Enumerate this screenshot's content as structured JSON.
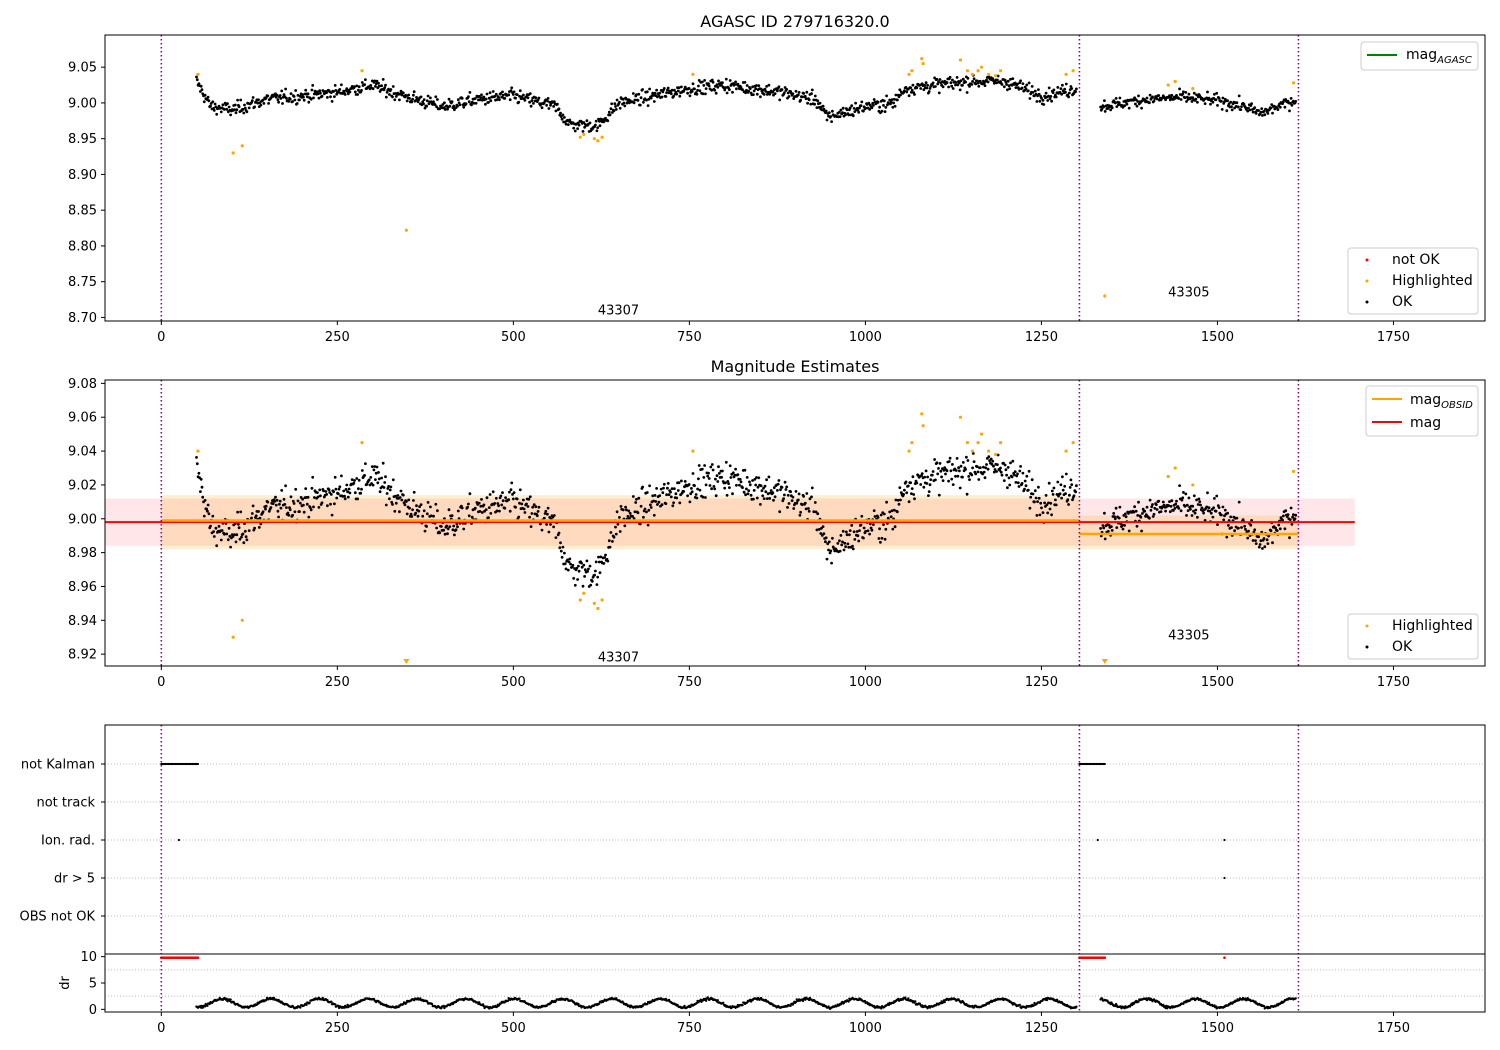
{
  "chart_data": [
    {
      "type": "scatter",
      "title": "AGASC ID 279716320.0",
      "xlim": [
        -80,
        1880
      ],
      "ylim": [
        8.695,
        9.095
      ],
      "xticks": [
        0,
        250,
        500,
        750,
        1000,
        1250,
        1500,
        1750
      ],
      "yticks": [
        8.7,
        8.75,
        8.8,
        8.85,
        8.9,
        8.95,
        9.0,
        9.05
      ],
      "ytick_labels": [
        "8.70",
        "8.75",
        "8.80",
        "8.85",
        "8.90",
        "8.95",
        "9.00",
        "9.05"
      ],
      "obs_boundaries": [
        0,
        1304,
        1615
      ],
      "annotations": [
        {
          "text": "43307",
          "x": 620,
          "y": 8.71
        },
        {
          "text": "43305",
          "x": 1430,
          "y": 8.735
        }
      ],
      "legend_upper": [
        {
          "label": "mag",
          "sub": "AGASC",
          "color": "#008000"
        }
      ],
      "legend_lower": [
        {
          "label": "not OK",
          "color": "#ff0000"
        },
        {
          "label": "Highlighted",
          "color": "#ffa500"
        },
        {
          "label": "OK",
          "color": "#000000"
        }
      ],
      "segments": [
        {
          "x0": 50,
          "x1": 1300,
          "knots": [
            [
              50,
              9.03
            ],
            [
              70,
              8.995
            ],
            [
              100,
              8.99
            ],
            [
              150,
              9.005
            ],
            [
              250,
              9.015
            ],
            [
              300,
              9.025
            ],
            [
              350,
              9.008
            ],
            [
              400,
              8.995
            ],
            [
              450,
              9.005
            ],
            [
              500,
              9.01
            ],
            [
              560,
              8.995
            ],
            [
              580,
              8.97
            ],
            [
              620,
              8.968
            ],
            [
              650,
              9.0
            ],
            [
              700,
              9.01
            ],
            [
              750,
              9.02
            ],
            [
              800,
              9.025
            ],
            [
              880,
              9.015
            ],
            [
              930,
              9.005
            ],
            [
              945,
              8.98
            ],
            [
              1000,
              8.995
            ],
            [
              1040,
              9.0
            ],
            [
              1055,
              9.02
            ],
            [
              1100,
              9.025
            ],
            [
              1150,
              9.03
            ],
            [
              1200,
              9.03
            ],
            [
              1250,
              9.01
            ],
            [
              1300,
              9.02
            ]
          ],
          "noise": 0.008
        },
        {
          "x0": 1334,
          "x1": 1612,
          "knots": [
            [
              1334,
              8.995
            ],
            [
              1400,
              9.005
            ],
            [
              1450,
              9.008
            ],
            [
              1500,
              9.003
            ],
            [
              1540,
              8.995
            ],
            [
              1560,
              8.985
            ],
            [
              1612,
              9.005
            ]
          ],
          "noise": 0.007
        }
      ],
      "highlighted_points": [
        [
          52,
          9.04
        ],
        [
          102,
          8.93
        ],
        [
          115,
          8.94
        ],
        [
          285,
          9.045
        ],
        [
          348,
          8.822
        ],
        [
          595,
          8.952
        ],
        [
          600,
          8.956
        ],
        [
          615,
          8.95
        ],
        [
          620,
          8.947
        ],
        [
          626,
          8.952
        ],
        [
          755,
          9.04
        ],
        [
          1062,
          9.04
        ],
        [
          1066,
          9.045
        ],
        [
          1080,
          9.062
        ],
        [
          1082,
          9.055
        ],
        [
          1135,
          9.06
        ],
        [
          1145,
          9.045
        ],
        [
          1152,
          9.04
        ],
        [
          1160,
          9.045
        ],
        [
          1165,
          9.05
        ],
        [
          1175,
          9.04
        ],
        [
          1185,
          9.038
        ],
        [
          1192,
          9.045
        ],
        [
          1285,
          9.04
        ],
        [
          1295,
          9.045
        ],
        [
          1340,
          8.73
        ],
        [
          1430,
          9.025
        ],
        [
          1440,
          9.03
        ],
        [
          1465,
          9.02
        ],
        [
          1608,
          9.028
        ]
      ]
    },
    {
      "type": "scatter",
      "title": "Magnitude Estimates",
      "xlim": [
        -80,
        1880
      ],
      "ylim": [
        8.913,
        9.082
      ],
      "xticks": [
        0,
        250,
        500,
        750,
        1000,
        1250,
        1500,
        1750
      ],
      "yticks": [
        8.92,
        8.94,
        8.96,
        8.98,
        9.0,
        9.02,
        9.04,
        9.06,
        9.08
      ],
      "ytick_labels": [
        "8.92",
        "8.94",
        "8.96",
        "8.98",
        "9.00",
        "9.02",
        "9.04",
        "9.06",
        "9.08"
      ],
      "obs_boundaries": [
        0,
        1304,
        1615
      ],
      "annotations": [
        {
          "text": "43307",
          "x": 620,
          "y": 8.918
        },
        {
          "text": "43305",
          "x": 1430,
          "y": 8.931
        }
      ],
      "mag_line": {
        "value": 8.998,
        "band": [
          8.984,
          9.012
        ],
        "x0": -80,
        "x1": 1695,
        "color": "#ff0000"
      },
      "mag_obsid": [
        {
          "x0": 0,
          "x1": 1304,
          "value": 8.999,
          "band": [
            8.982,
            9.014
          ]
        },
        {
          "x0": 1304,
          "x1": 1615,
          "value": 8.991,
          "band": [
            8.982,
            9.002
          ]
        }
      ],
      "legend_upper": [
        {
          "label": "mag",
          "sub": "OBSID",
          "color": "#ffa500"
        },
        {
          "label": "mag",
          "sub": "",
          "color": "#ff0000"
        }
      ],
      "legend_lower": [
        {
          "label": "Highlighted",
          "color": "#ffa500"
        },
        {
          "label": "OK",
          "color": "#000000"
        }
      ],
      "clipped_markers": [
        348,
        1340
      ]
    },
    {
      "type": "table",
      "title": "",
      "xlim": [
        -80,
        1880
      ],
      "xticks": [
        0,
        250,
        500,
        750,
        1000,
        1250,
        1500,
        1750
      ],
      "obs_boundaries": [
        0,
        1304,
        1615
      ],
      "flag_rows": [
        "not Kalman",
        "not track",
        "Ion. rad.",
        "dr > 5",
        "OBS not OK"
      ],
      "flags": {
        "not Kalman": [
          [
            0,
            52
          ],
          [
            1304,
            1340
          ]
        ],
        "Ion. rad.": [
          [
            25,
            25
          ],
          [
            1330,
            1330
          ],
          [
            1510,
            1510
          ]
        ],
        "dr > 5": [
          [
            1510,
            1510
          ]
        ]
      },
      "dr_ylabel": "dr",
      "dr_yticks": [
        0,
        5,
        10
      ],
      "dr_ylim": [
        -0.5,
        10.5
      ],
      "dr_red_points": [
        [
          0,
          52
        ],
        [
          1304,
          1340
        ],
        [
          1510,
          1510
        ]
      ]
    }
  ]
}
